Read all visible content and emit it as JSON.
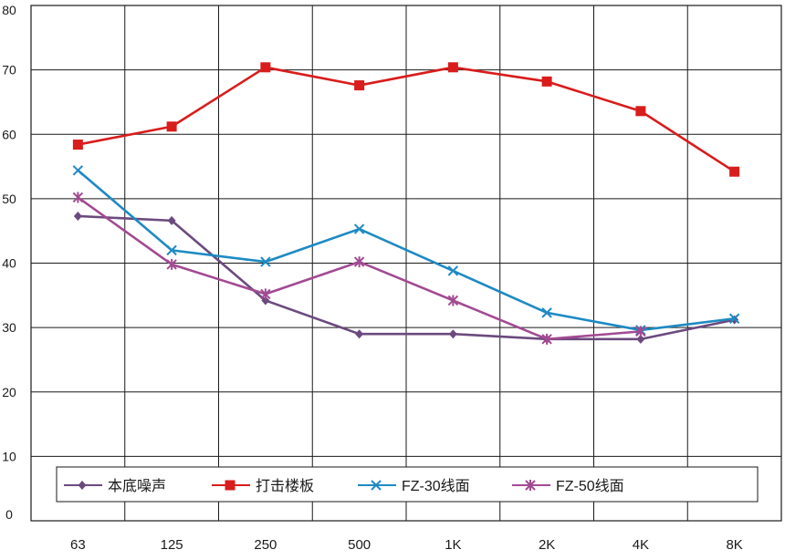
{
  "chart_data": {
    "type": "line",
    "title": "",
    "xlabel": "",
    "ylabel": "",
    "categories": [
      "63",
      "125",
      "250",
      "500",
      "1K",
      "2K",
      "4K",
      "8K"
    ],
    "yticks": [
      "0",
      "10",
      "20",
      "30",
      "40",
      "50",
      "60",
      "70",
      "80"
    ],
    "ylim": [
      0,
      80
    ],
    "grid": true,
    "legend_position": "bottom",
    "series": [
      {
        "name": "本底噪声",
        "color": "#6b4a7e",
        "marker": "diamond",
        "x": [
          0,
          1,
          2,
          3,
          4,
          5,
          6,
          7
        ],
        "values": [
          47.3,
          46.6,
          34.2,
          29.0,
          29.0,
          28.2,
          28.2,
          31.2
        ]
      },
      {
        "name": "打击楼板",
        "color": "#d91c1c",
        "marker": "square",
        "x": [
          0,
          1,
          2,
          3,
          4,
          5,
          6,
          7
        ],
        "values": [
          58.4,
          61.2,
          70.4,
          67.6,
          70.4,
          68.2,
          63.6,
          54.2
        ]
      },
      {
        "name": "FZ-30线面",
        "color": "#1e8ac3",
        "marker": "x",
        "x": [
          0,
          1,
          2,
          3,
          4,
          5,
          6,
          7
        ],
        "values": [
          54.4,
          42.0,
          40.2,
          45.3,
          38.8,
          32.3,
          29.6,
          31.4
        ]
      },
      {
        "name": "FZ-50线面",
        "color": "#a24a92",
        "marker": "star",
        "x": [
          0,
          1,
          2,
          3,
          4,
          5,
          6
        ],
        "values": [
          50.2,
          39.8,
          35.2,
          40.2,
          34.2,
          28.2,
          29.4
        ]
      }
    ]
  }
}
